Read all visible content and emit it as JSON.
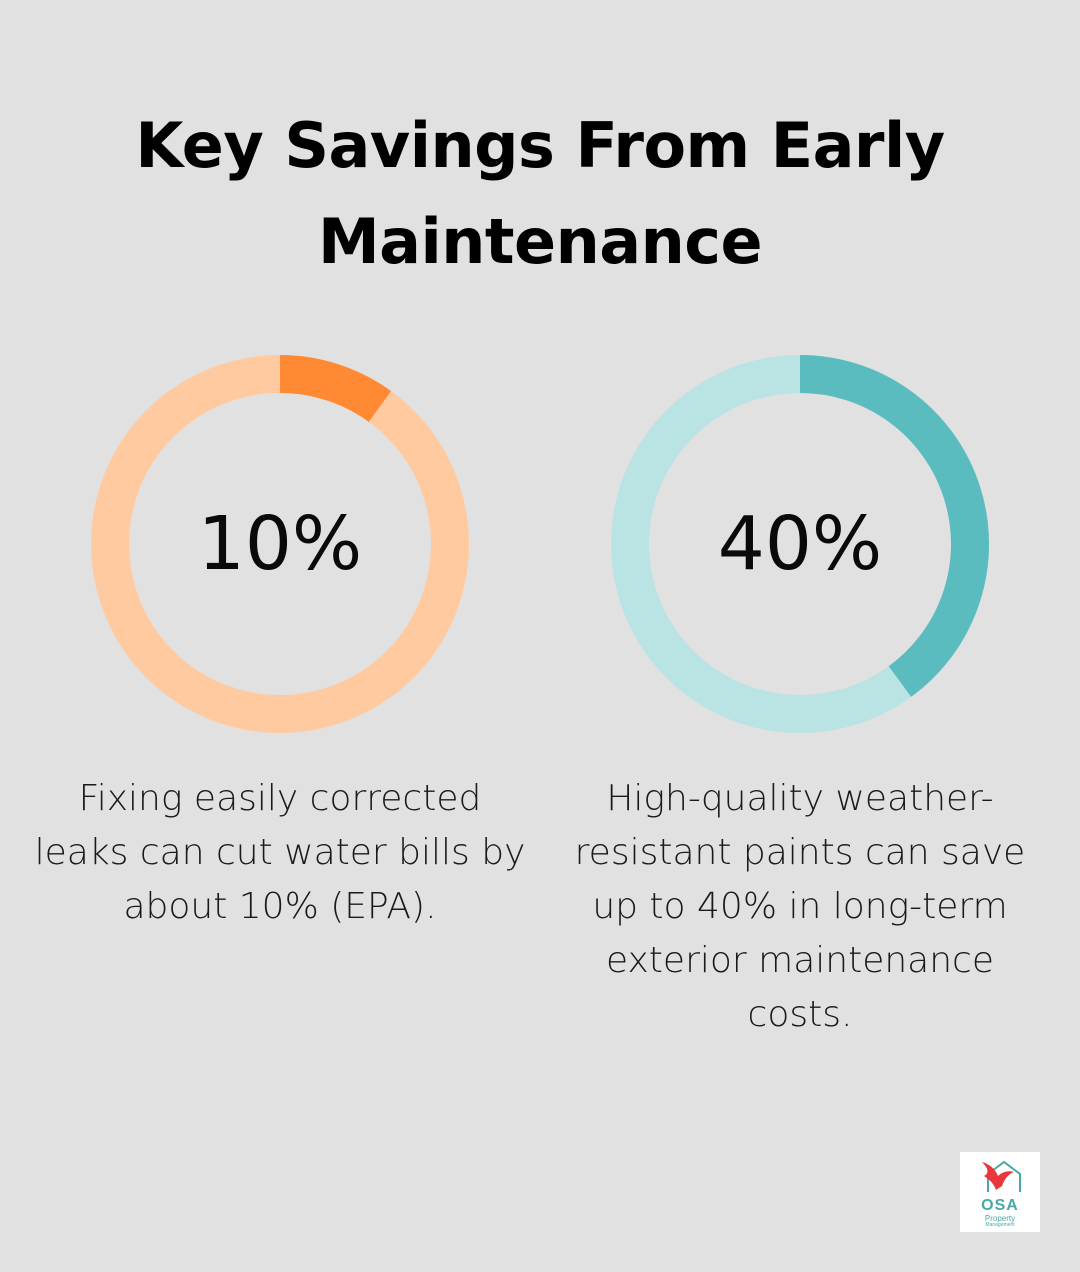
{
  "title": "Key Savings From Early Maintenance",
  "chart_data": [
    {
      "type": "pie",
      "variant": "donut",
      "value": 10,
      "max": 100,
      "center_label": "10%",
      "caption": "Fixing easily corrected leaks can cut water bills by about 10% (EPA).",
      "colors": {
        "filled": "#ff8a33",
        "track": "#ffcaa0"
      }
    },
    {
      "type": "pie",
      "variant": "donut",
      "value": 40,
      "max": 100,
      "center_label": "40%",
      "caption": "High-quality weather-resistant paints can save up to 40% in long-term exterior maintenance costs.",
      "colors": {
        "filled": "#5bbcbf",
        "track": "#bae3e4"
      }
    }
  ],
  "logo": {
    "name": "OSA",
    "line1": "Property",
    "line2": "Management",
    "icon": "bird-house-icon",
    "colors": {
      "bird": "#e8383d",
      "house": "#4aa8a4"
    }
  }
}
